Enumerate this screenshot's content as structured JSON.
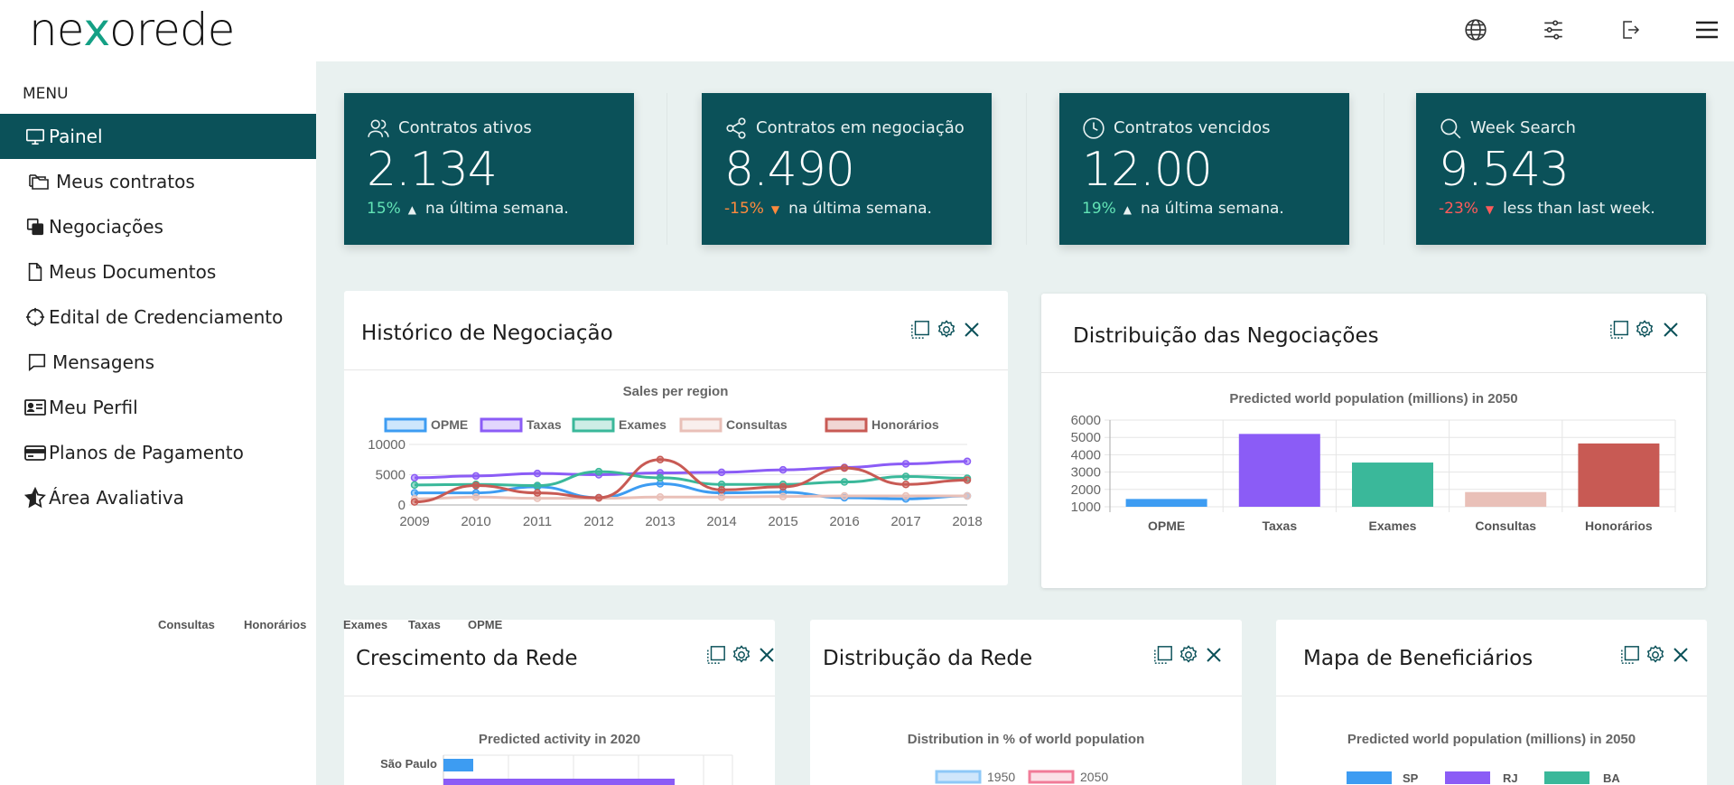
{
  "header": {
    "logo_prefix": "ne",
    "logo_x": "x",
    "logo_suffix": "orede",
    "icons": [
      "globe-icon",
      "sliders-icon",
      "logout-icon",
      "hamburger-menu-icon"
    ]
  },
  "sidebar": {
    "menu_title": "MENU",
    "items": [
      {
        "label": "Painel",
        "icon": "monitor-icon",
        "active": true
      },
      {
        "label": "Meus contratos",
        "icon": "folders-icon"
      },
      {
        "label": "Negociações",
        "icon": "copy-icon"
      },
      {
        "label": "Meus Documentos",
        "icon": "document-icon"
      },
      {
        "label": "Edital de Credenciamento",
        "icon": "crosshair-icon"
      },
      {
        "label": "Mensagens",
        "icon": "message-icon"
      },
      {
        "label": "Meu Perfil",
        "icon": "id-card-icon"
      },
      {
        "label": "Planos de Pagamento",
        "icon": "credit-card-icon"
      },
      {
        "label": "Área Avaliativa",
        "icon": "star-icon"
      }
    ],
    "legend_strip": [
      "Consultas",
      "Honorários",
      "Exames",
      "Taxas",
      "OPME"
    ]
  },
  "stats": [
    {
      "label": "Contratos ativos",
      "value": "2.134",
      "pct": "15%",
      "direction": "up",
      "rest": "na última semana.",
      "icon": "users-icon"
    },
    {
      "label": "Contratos em negociação",
      "value": "8.490",
      "pct": "-15%",
      "direction": "down",
      "rest": "na última semana.",
      "icon": "share-icon"
    },
    {
      "label": "Contratos vencidos",
      "value": "12.00",
      "pct": "19%",
      "direction": "up",
      "rest": "na última semana.",
      "icon": "clock-icon"
    },
    {
      "label": "Week Search",
      "value": "9.543",
      "pct": "-23%",
      "direction": "down-red",
      "rest": "less than last week.",
      "icon": "search-icon"
    }
  ],
  "panels": {
    "historico": {
      "title": "Histórico de Negociação"
    },
    "distribuicao": {
      "title": "Distribuição das Negociações"
    },
    "crescimento": {
      "title": "Crescimento da Rede"
    },
    "distribuicao_rede": {
      "title": "Distribução da Rede"
    },
    "mapa": {
      "title": "Mapa de Beneficiários"
    }
  },
  "colors": {
    "brand": "#0b5159",
    "opme": "#3d9cf2",
    "taxas": "#8b5cf6",
    "exames": "#3ab89a",
    "consultas": "#e9c0b8",
    "honorarios": "#c85a54"
  },
  "chart_data": [
    {
      "type": "line",
      "title": "Sales per region",
      "x": [
        2009,
        2010,
        2011,
        2012,
        2013,
        2014,
        2015,
        2016,
        2017,
        2018
      ],
      "ylim": [
        0,
        10000
      ],
      "yticks": [
        0,
        5000,
        10000
      ],
      "legend": "top",
      "series": [
        {
          "name": "OPME",
          "color": "#3d9cf2",
          "values": [
            2000,
            2000,
            3000,
            1200,
            3500,
            2000,
            2100,
            1200,
            1000,
            1500
          ]
        },
        {
          "name": "Taxas",
          "color": "#8b5cf6",
          "values": [
            4500,
            4800,
            5200,
            5000,
            5300,
            5400,
            5800,
            6200,
            6800,
            7200
          ]
        },
        {
          "name": "Exames",
          "color": "#3ab89a",
          "values": [
            3300,
            3400,
            3200,
            5500,
            4500,
            3400,
            3400,
            3800,
            4700,
            4400
          ]
        },
        {
          "name": "Consultas",
          "color": "#e9c0b8",
          "values": [
            1000,
            1300,
            1100,
            1100,
            1300,
            1300,
            1400,
            1500,
            1500,
            1500
          ]
        },
        {
          "name": "Honorários",
          "color": "#c85a54",
          "values": [
            500,
            3200,
            2000,
            1200,
            7500,
            2500,
            3000,
            6100,
            3400,
            4100
          ]
        }
      ]
    },
    {
      "type": "bar",
      "title": "Predicted world population (millions) in 2050",
      "categories": [
        "OPME",
        "Taxas",
        "Exames",
        "Consultas",
        "Honorários"
      ],
      "values": [
        1450,
        5200,
        3550,
        1850,
        4650
      ],
      "colors": [
        "#3d9cf2",
        "#8b5cf6",
        "#3ab89a",
        "#e9c0b8",
        "#c85a54"
      ],
      "ylim": [
        1000,
        6000
      ],
      "yticks": [
        1000,
        2000,
        3000,
        4000,
        5000,
        6000
      ]
    },
    {
      "type": "bar",
      "title": "Predicted activity in 2020",
      "categories": [
        "São Paulo"
      ],
      "values": [
        1
      ]
    },
    {
      "type": "bar",
      "title": "Distribution in % of world population",
      "series": [
        {
          "name": "1950",
          "color": "#8ec8f7"
        },
        {
          "name": "2050",
          "color": "#f7a8b8"
        }
      ]
    },
    {
      "type": "bar",
      "title": "Predicted world population (millions) in 2050",
      "series": [
        {
          "name": "SP",
          "color": "#3d9cf2"
        },
        {
          "name": "RJ",
          "color": "#8b5cf6"
        },
        {
          "name": "BA",
          "color": "#3ab89a"
        }
      ]
    }
  ]
}
